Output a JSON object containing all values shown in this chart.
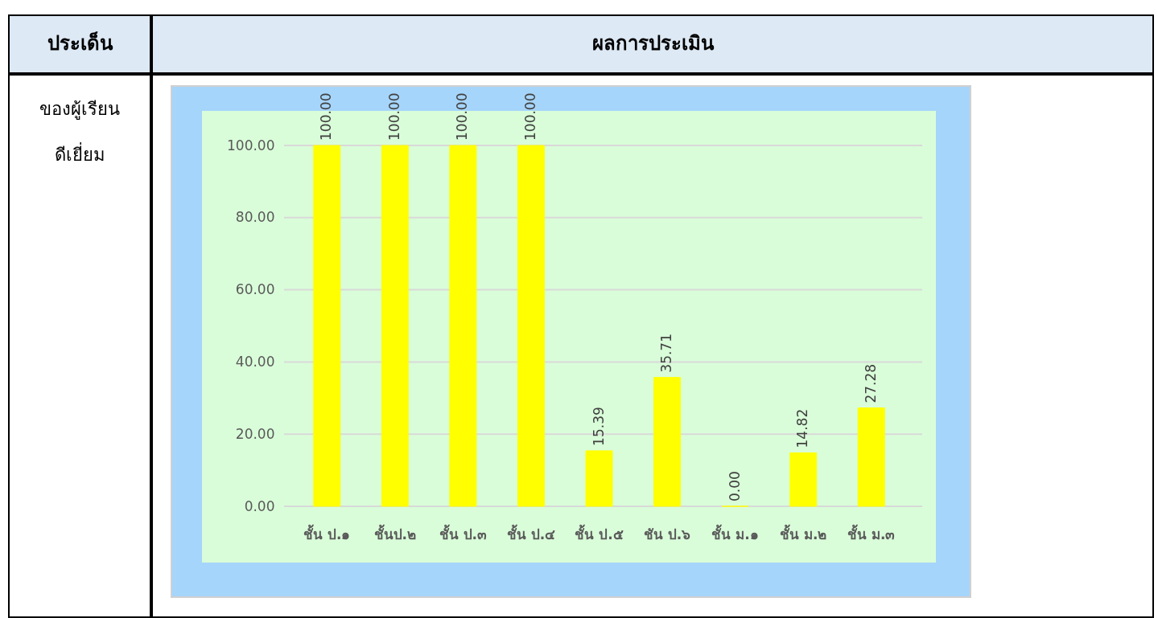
{
  "chart_data": {
    "type": "bar",
    "title": "ผลการประเมิน",
    "annotations": [
      "ประเด็น",
      "ของผู้เรียน",
      "ดีเยี่ยม"
    ],
    "categories": [
      "ชั้น ป.๑",
      "ชั้นป.๒",
      "ชั้น ป.๓",
      "ชั้น ป.๔",
      "ชั้น ป.๕",
      "ชัน ป.๖",
      "ชั้น ม.๑",
      "ชั้น ม.๒",
      "ชั้น ม.๓"
    ],
    "values": [
      100,
      100,
      100,
      100,
      15.39,
      35.71,
      0,
      14.82,
      27.28
    ],
    "value_labels": [
      "100.00",
      "100.00",
      "100.00",
      "100.00",
      "15.39",
      "35.71",
      "0.00",
      "14.82",
      "27.28"
    ],
    "color": "#ffff00",
    "ylim": [
      0,
      100
    ],
    "yticks": [
      {
        "value": 0,
        "label": "0.00"
      },
      {
        "value": 20,
        "label": "20.00"
      },
      {
        "value": 40,
        "label": "40.00"
      },
      {
        "value": 60,
        "label": "60.00"
      },
      {
        "value": 80,
        "label": "80.00"
      },
      {
        "value": 100,
        "label": "100.00"
      }
    ],
    "grid": "y"
  }
}
